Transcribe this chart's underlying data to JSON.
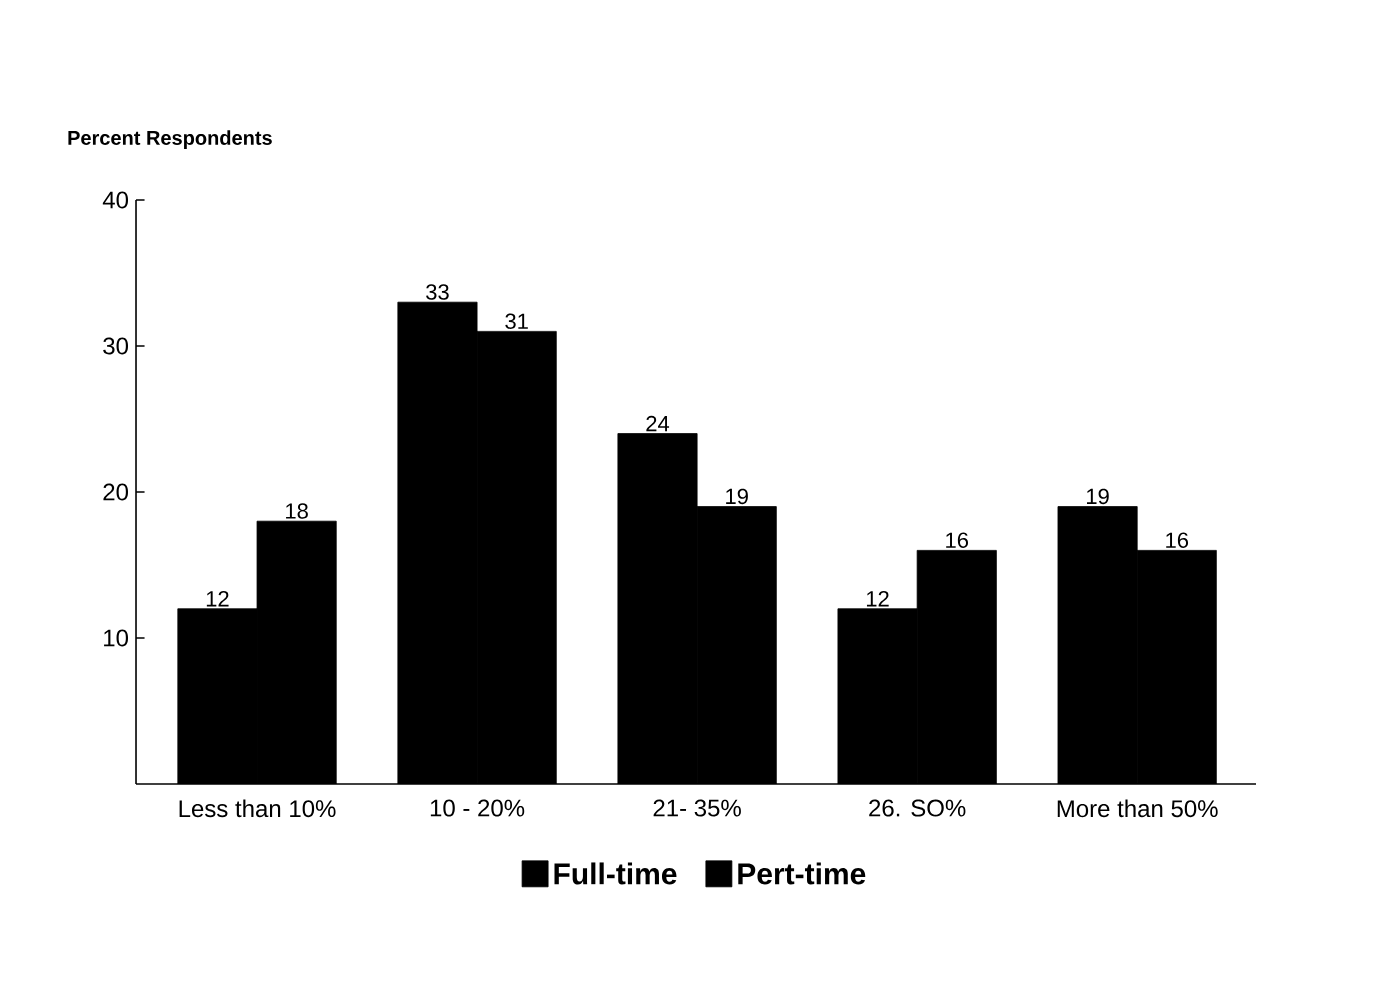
{
  "chart_data": {
    "type": "bar",
    "ylabel": "Percent Respondents",
    "categories": [
      "Less than 10%",
      "10 - 20%",
      "21- 35%",
      "26. SO%",
      "More than 50%"
    ],
    "series": [
      {
        "name": "Full-time",
        "color": "#000000",
        "values": [
          12,
          33,
          24,
          12,
          19
        ]
      },
      {
        "name": "Pert-time",
        "color": "#000000",
        "values": [
          18,
          31,
          19,
          16,
          16
        ]
      }
    ],
    "ylim": [
      0,
      40
    ],
    "yticks": [
      10,
      20,
      30,
      40
    ],
    "data_labels": true,
    "legend": "bottom"
  }
}
